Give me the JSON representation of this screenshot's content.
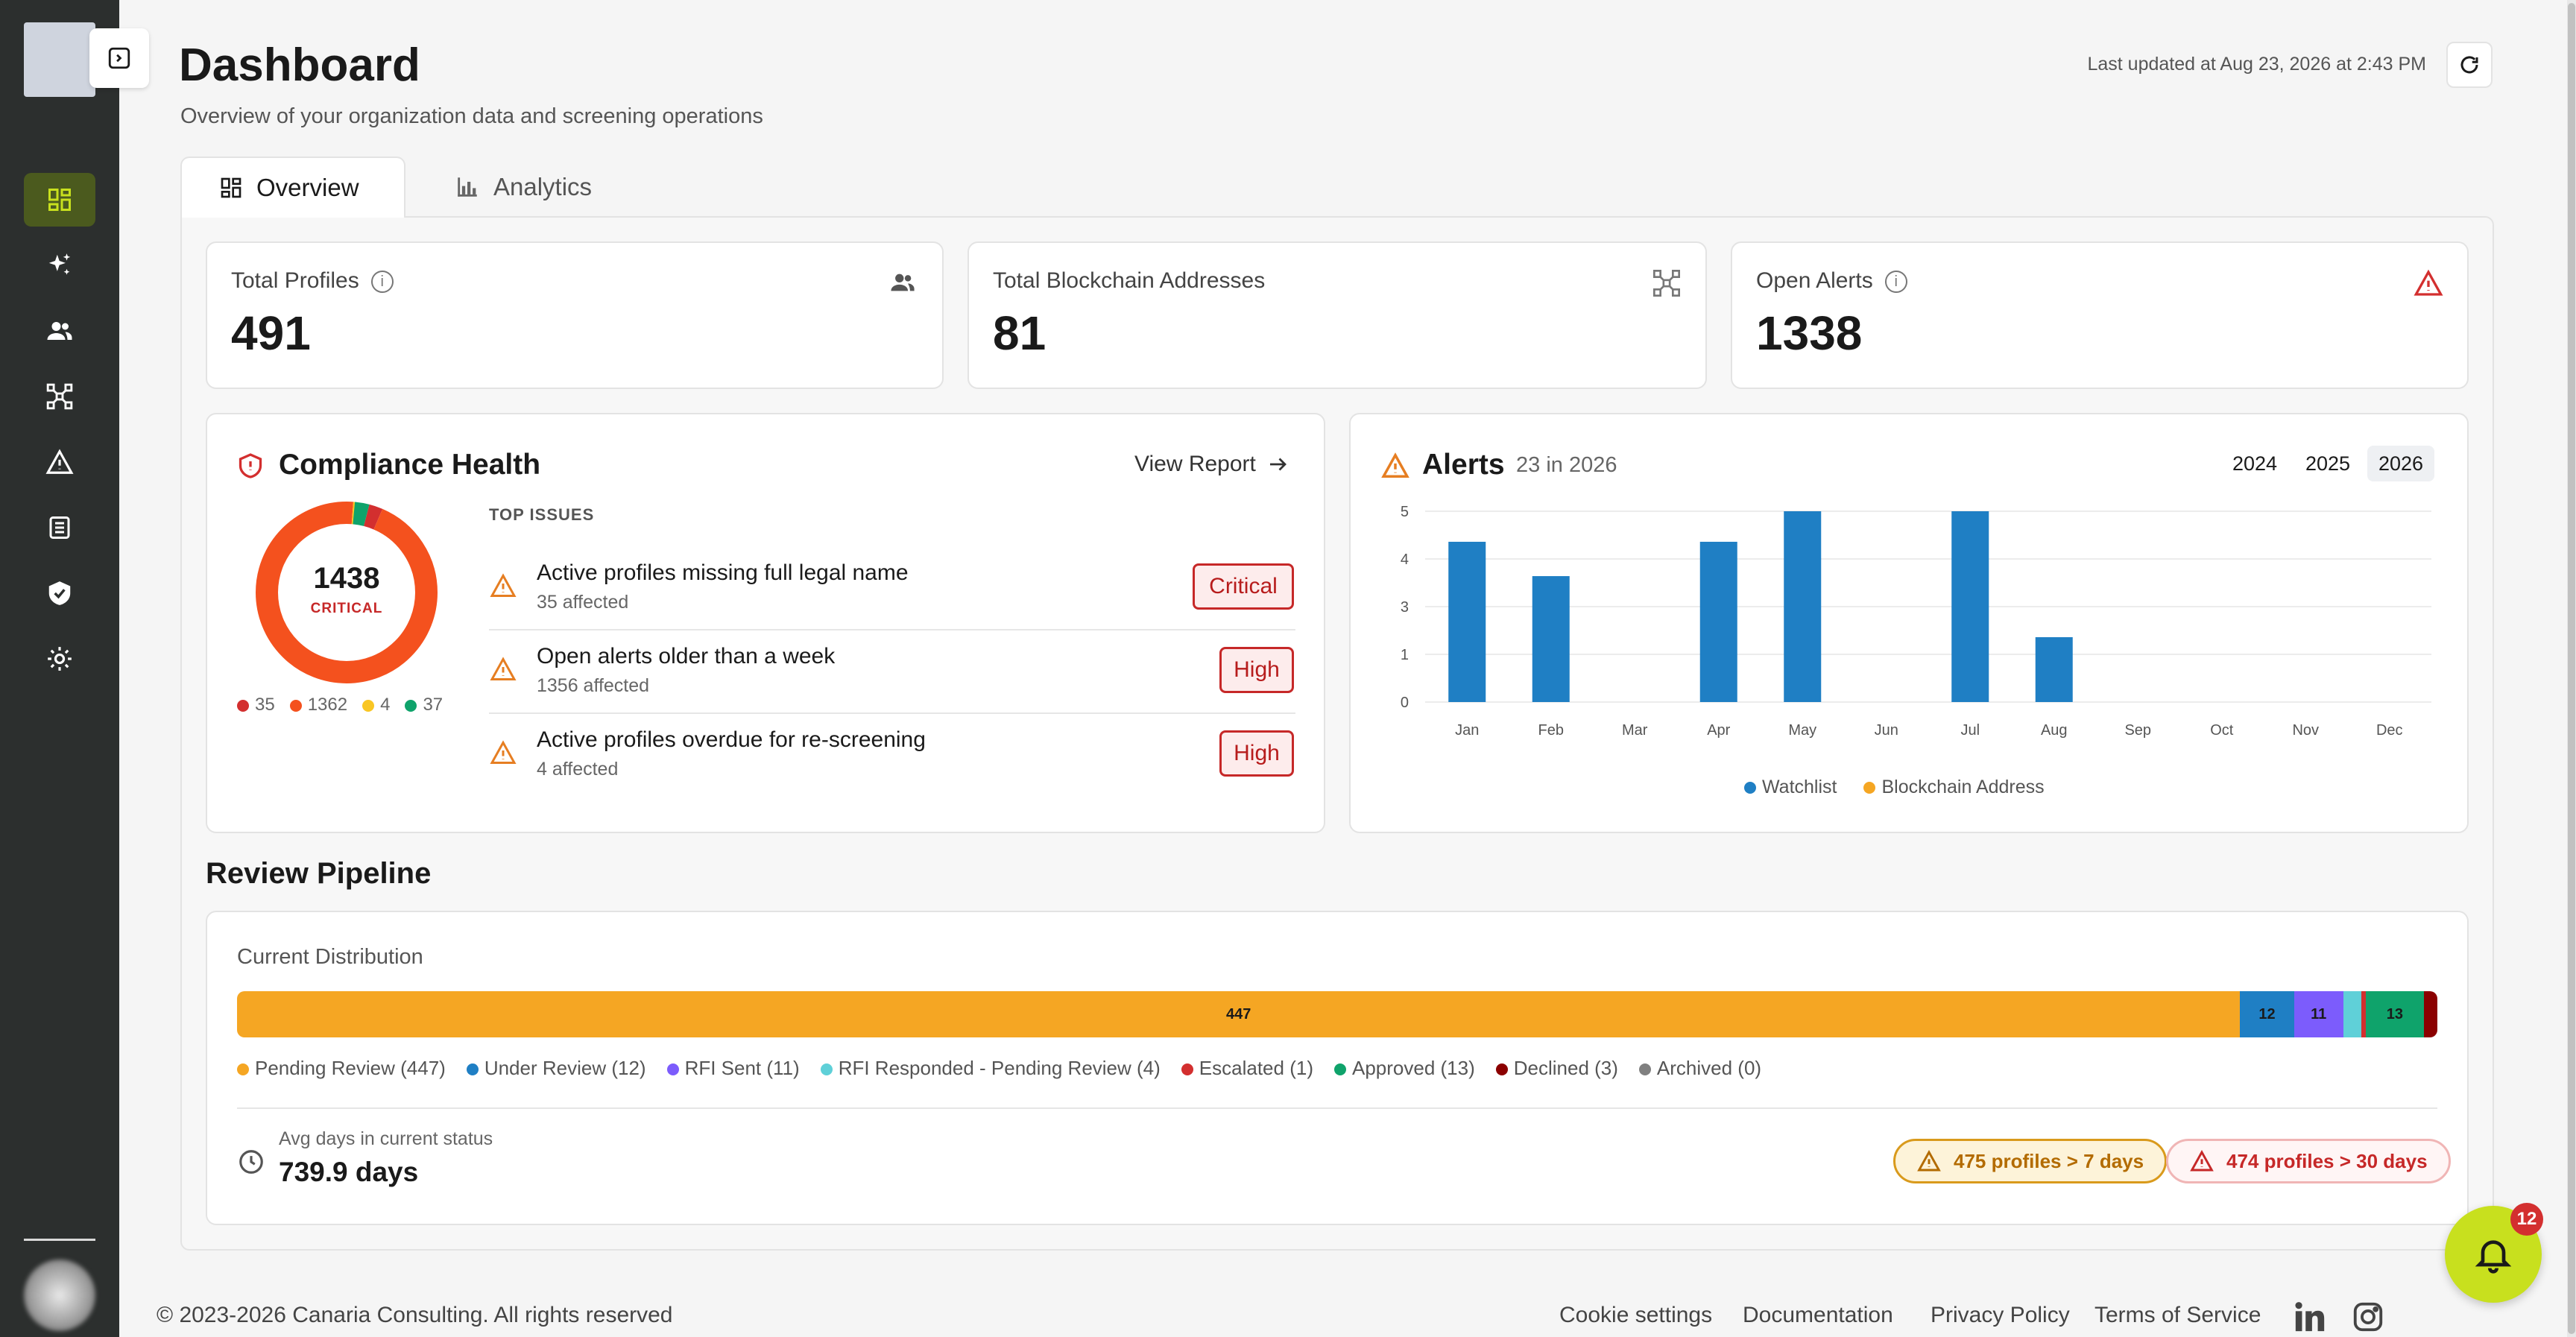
{
  "header": {
    "title": "Dashboard",
    "subtitle": "Overview of your organization data and screening operations",
    "last_updated": "Last updated at Aug 23, 2026 at 2:43 PM"
  },
  "tabs": [
    {
      "label": "Overview",
      "active": true,
      "icon": "grid-icon"
    },
    {
      "label": "Analytics",
      "active": false,
      "icon": "bar-chart-icon"
    }
  ],
  "sidebar": {
    "items": [
      {
        "name": "dashboard",
        "icon": "grid-icon",
        "active": true
      },
      {
        "name": "ai",
        "icon": "sparkles-icon",
        "active": false
      },
      {
        "name": "profiles",
        "icon": "users-icon",
        "active": false
      },
      {
        "name": "blockchain",
        "icon": "network-icon",
        "active": false
      },
      {
        "name": "alerts",
        "icon": "warning-icon",
        "active": false
      },
      {
        "name": "reports",
        "icon": "document-icon",
        "active": false
      },
      {
        "name": "compliance",
        "icon": "shield-check-icon",
        "active": false
      },
      {
        "name": "settings",
        "icon": "gear-icon",
        "active": false
      }
    ]
  },
  "stats": [
    {
      "label": "Total Profiles",
      "value": "491",
      "icon": "users-icon",
      "has_info": true
    },
    {
      "label": "Total Blockchain Addresses",
      "value": "81",
      "icon": "network-icon",
      "has_info": false
    },
    {
      "label": "Open Alerts",
      "value": "1338",
      "icon": "warning-icon",
      "has_info": true
    }
  ],
  "compliance": {
    "title": "Compliance Health",
    "view_report": "View Report",
    "donut_value": "1438",
    "donut_label": "CRITICAL",
    "donut_segments": [
      {
        "value": 35,
        "label": "35",
        "color": "#d32f2f"
      },
      {
        "value": 1362,
        "label": "1362",
        "color": "#f4511e"
      },
      {
        "value": 4,
        "label": "4",
        "color": "#f9c623"
      },
      {
        "value": 37,
        "label": "37",
        "color": "#0fa36b"
      }
    ],
    "top_issues_label": "TOP ISSUES",
    "issues": [
      {
        "title": "Active profiles missing full legal name",
        "affected": "35 affected",
        "severity": "Critical"
      },
      {
        "title": "Open alerts older than a week",
        "affected": "1356 affected",
        "severity": "High"
      },
      {
        "title": "Active profiles overdue for re-screening",
        "affected": "4 affected",
        "severity": "High"
      }
    ]
  },
  "alerts_card": {
    "title": "Alerts",
    "subtitle": "23 in 2026",
    "years": [
      "2024",
      "2025",
      "2026"
    ],
    "selected_year": "2026"
  },
  "chart_data": {
    "type": "bar",
    "categories": [
      "Jan",
      "Feb",
      "Mar",
      "Apr",
      "May",
      "Jun",
      "Jul",
      "Aug",
      "Sep",
      "Oct",
      "Nov",
      "Dec"
    ],
    "series": [
      {
        "name": "Watchlist",
        "color": "#1f7fc4",
        "values": [
          4.2,
          3.3,
          0,
          4.2,
          5,
          0,
          5,
          1.7,
          0,
          0,
          0,
          0
        ]
      },
      {
        "name": "Blockchain Address",
        "color": "#f5a623",
        "values": [
          0,
          0,
          0,
          0,
          0,
          0,
          0,
          0,
          0,
          0,
          0,
          0
        ]
      }
    ],
    "yticks": [
      "0",
      "1",
      "3",
      "4",
      "5"
    ],
    "ytick_values": [
      0,
      1.25,
      2.5,
      3.75,
      5
    ],
    "ylim": [
      0,
      5
    ],
    "grid": true,
    "legend": "bottom"
  },
  "pipeline": {
    "title": "Review Pipeline",
    "distribution_label": "Current Distribution",
    "segments": [
      {
        "label": "Pending Review (447)",
        "value": 447,
        "bar_label": "447",
        "color": "#f5a623"
      },
      {
        "label": "Under Review (12)",
        "value": 12,
        "bar_label": "12",
        "color": "#1f7fc4"
      },
      {
        "label": "RFI Sent (11)",
        "value": 11,
        "bar_label": "11",
        "color": "#7c5cfc"
      },
      {
        "label": "RFI Responded - Pending Review (4)",
        "value": 4,
        "bar_label": "",
        "color": "#5fd0d8"
      },
      {
        "label": "Escalated (1)",
        "value": 1,
        "bar_label": "",
        "color": "#d32f2f"
      },
      {
        "label": "Approved (13)",
        "value": 13,
        "bar_label": "13",
        "color": "#0fa36b"
      },
      {
        "label": "Declined (3)",
        "value": 3,
        "bar_label": "",
        "color": "#8b0000"
      },
      {
        "label": "Archived (0)",
        "value": 0,
        "bar_label": "",
        "color": "#808080"
      }
    ],
    "avg_label": "Avg days in current status",
    "avg_value": "739.9 days",
    "warn_7": "475 profiles > 7 days",
    "warn_30": "474 profiles > 30 days"
  },
  "footer": {
    "copyright": "© 2023-2026 Canaria Consulting. All rights reserved",
    "links": [
      "Cookie settings",
      "Documentation",
      "Privacy Policy",
      "Terms of Service"
    ],
    "social": [
      "linkedin-icon",
      "instagram-icon"
    ]
  },
  "notifications": {
    "count": "12"
  }
}
